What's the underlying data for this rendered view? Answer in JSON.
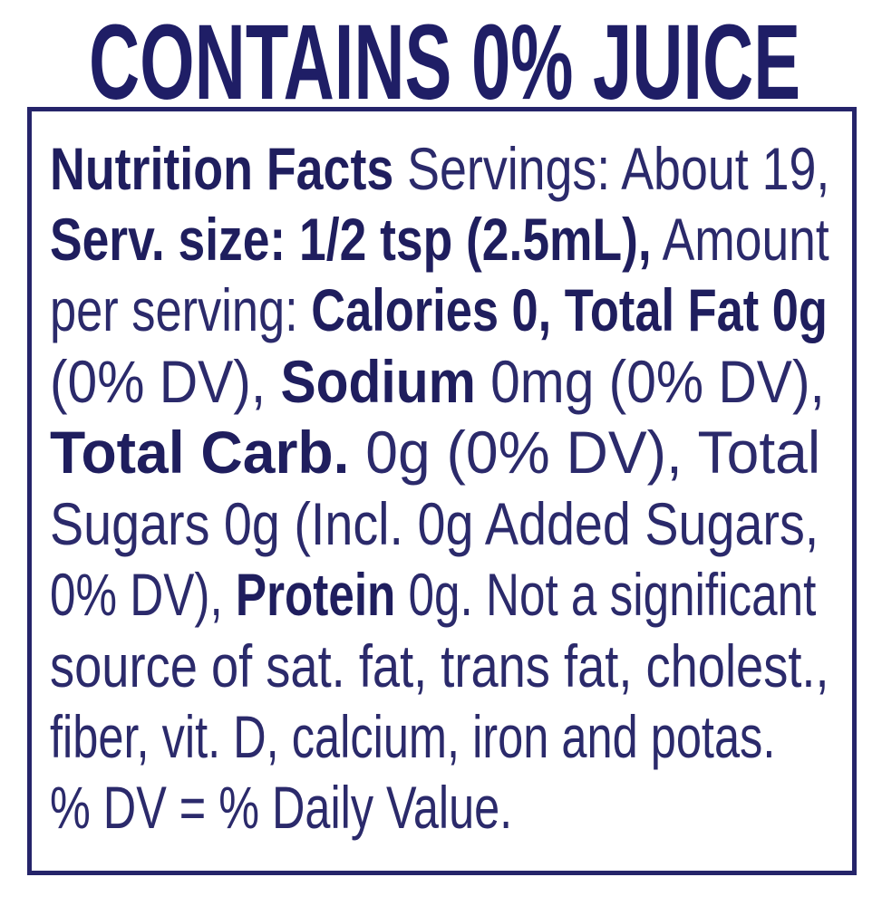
{
  "header": {
    "title": "CONTAINS 0% JUICE"
  },
  "colors": {
    "text": "#2b2a6b",
    "border": "#25246a",
    "background": "#ffffff"
  },
  "label": {
    "lines": [
      [
        {
          "text": "Nutrition Facts",
          "bold": true
        },
        {
          "text": " Servings: About 19,",
          "bold": false
        }
      ],
      [
        {
          "text": "Serv. size: 1/2 tsp (2.5mL),",
          "bold": true
        },
        {
          "text": " Amount",
          "bold": false
        }
      ],
      [
        {
          "text": "per serving: ",
          "bold": false
        },
        {
          "text": "Calories 0, Total Fat 0g",
          "bold": true
        }
      ],
      [
        {
          "text": "(0% DV), ",
          "bold": false
        },
        {
          "text": "Sodium",
          "bold": true
        },
        {
          "text": " 0mg (0% DV),",
          "bold": false
        }
      ],
      [
        {
          "text": "Total Carb.",
          "bold": true
        },
        {
          "text": " 0g (0% DV), Total",
          "bold": false
        }
      ],
      [
        {
          "text": "Sugars 0g (Incl. 0g Added Sugars,",
          "bold": false
        }
      ],
      [
        {
          "text": "0% DV), ",
          "bold": false
        },
        {
          "text": "Protein",
          "bold": true
        },
        {
          "text": " 0g. Not a significant",
          "bold": false
        }
      ],
      [
        {
          "text": "source of sat. fat, trans fat, cholest.,",
          "bold": false
        }
      ],
      [
        {
          "text": "fiber, vit. D, calcium, iron and potas.",
          "bold": false
        }
      ],
      [
        {
          "text": "% DV = % Daily Value.",
          "bold": false
        }
      ]
    ]
  }
}
